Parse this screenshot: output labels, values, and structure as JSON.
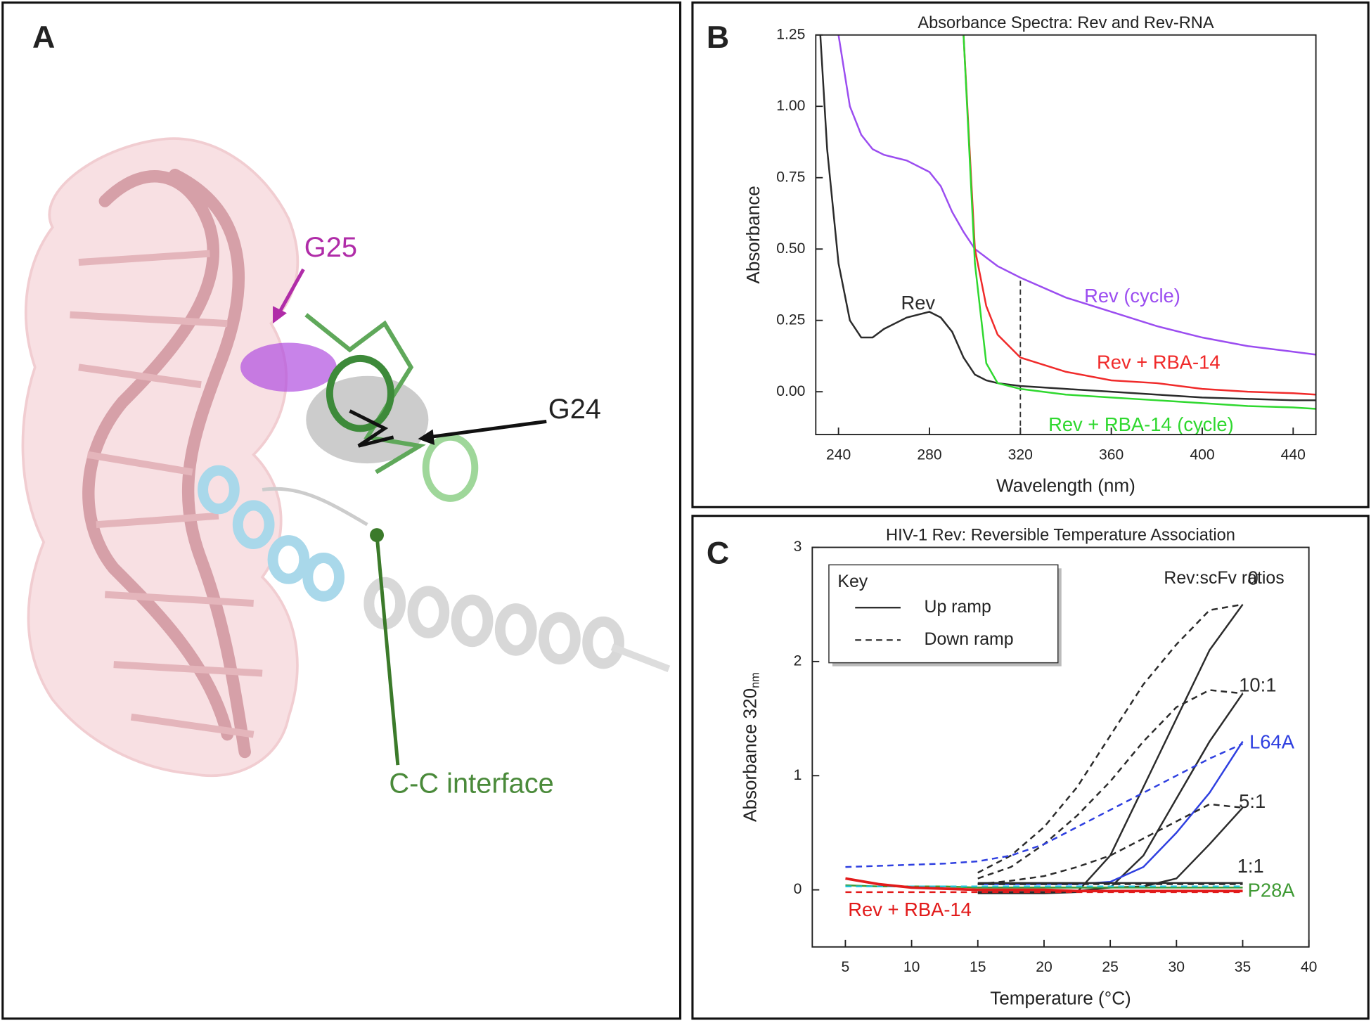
{
  "panels": [
    "A",
    "B",
    "C"
  ],
  "molecule": {
    "labels": [
      "G25",
      "G24",
      "C-C interface"
    ]
  },
  "chart_data": [
    {
      "type": "line",
      "title": "Absorbance Spectra: Rev and Rev-RNA",
      "x_label": "Wavelength (nm)",
      "y_label": "Absorbance",
      "xlim": [
        230,
        450
      ],
      "ylim": [
        -0.15,
        1.25
      ],
      "xticks": [
        240,
        280,
        320,
        360,
        400,
        440
      ],
      "yticks": [
        {
          "value": 0,
          "label": "0.00"
        },
        0.25,
        {
          "value": 0.5,
          "label": "0.50"
        },
        0.75,
        {
          "value": 1,
          "label": "1.00"
        },
        1.25
      ],
      "reference_x": 320,
      "x": [
        232,
        235,
        240,
        245,
        250,
        255,
        260,
        270,
        280,
        285,
        290,
        295,
        300,
        305,
        310,
        320,
        340,
        360,
        380,
        400,
        420,
        440,
        450
      ],
      "series": [
        {
          "name": "Rev",
          "color": "#2b2b2b",
          "values": [
            1.25,
            0.85,
            0.45,
            0.25,
            0.19,
            0.19,
            0.22,
            0.26,
            0.28,
            0.26,
            0.21,
            0.12,
            0.06,
            0.04,
            0.03,
            0.02,
            0.01,
            0.0,
            -0.01,
            -0.02,
            -0.025,
            -0.03,
            -0.03
          ]
        },
        {
          "name": "Rev (cycle)",
          "color": "#9b4df0",
          "values": [
            null,
            null,
            1.25,
            1.0,
            0.9,
            0.85,
            0.83,
            0.81,
            0.77,
            0.72,
            0.63,
            0.56,
            0.5,
            0.47,
            0.44,
            0.4,
            0.33,
            0.28,
            0.23,
            0.19,
            0.16,
            0.14,
            0.13
          ]
        },
        {
          "name": "Rev + RBA-14",
          "color": "#f02a2a",
          "values": [
            null,
            null,
            null,
            null,
            null,
            null,
            null,
            null,
            null,
            null,
            null,
            1.25,
            0.5,
            0.3,
            0.2,
            0.12,
            0.07,
            0.04,
            0.03,
            0.01,
            0.0,
            -0.005,
            -0.01
          ]
        },
        {
          "name": "Rev + RBA-14 (cycle)",
          "color": "#2fd82f",
          "values": [
            null,
            null,
            null,
            null,
            null,
            null,
            null,
            null,
            null,
            null,
            null,
            1.25,
            0.45,
            0.1,
            0.03,
            0.01,
            -0.01,
            -0.02,
            -0.03,
            -0.04,
            -0.05,
            -0.055,
            -0.06
          ]
        }
      ]
    },
    {
      "type": "line",
      "title": "HIV-1 Rev: Reversible Temperature Association",
      "x_label": "Temperature (°C)",
      "y_label": "Absorbance 320",
      "y_label_sub": "nm",
      "xlim": [
        2.5,
        40
      ],
      "ylim": [
        -0.5,
        3
      ],
      "xticks": [
        5,
        10,
        15,
        20,
        25,
        30,
        35,
        40
      ],
      "yticks": [
        0,
        1,
        2,
        3
      ],
      "legend": {
        "title": "Key",
        "entries": [
          "Up ramp",
          "Down ramp"
        ],
        "position": "upper-left"
      },
      "series_header": "Rev:scFv ratios",
      "x": [
        5,
        7.5,
        10,
        12.5,
        15,
        17.5,
        20,
        22.5,
        25,
        27.5,
        30,
        32.5,
        35
      ],
      "series": [
        {
          "name": "0",
          "color": "#2b2b2b",
          "up": [
            null,
            null,
            null,
            null,
            -0.03,
            -0.03,
            -0.03,
            -0.02,
            0.3,
            0.9,
            1.5,
            2.1,
            2.5
          ],
          "down": [
            null,
            null,
            null,
            null,
            0.15,
            0.3,
            0.55,
            0.9,
            1.35,
            1.8,
            2.15,
            2.45,
            2.5
          ]
        },
        {
          "name": "10:1",
          "color": "#2b2b2b",
          "up": [
            null,
            null,
            null,
            null,
            -0.02,
            -0.02,
            -0.02,
            -0.01,
            0.02,
            0.3,
            0.8,
            1.3,
            1.72
          ],
          "down": [
            null,
            null,
            null,
            null,
            0.1,
            0.2,
            0.4,
            0.65,
            0.95,
            1.3,
            1.6,
            1.75,
            1.72
          ]
        },
        {
          "name": "L64A",
          "color": "#2e3fe0",
          "up": [
            null,
            null,
            null,
            null,
            0.05,
            0.05,
            0.05,
            0.05,
            0.07,
            0.2,
            0.5,
            0.85,
            1.3
          ],
          "down": [
            0.2,
            0.21,
            0.22,
            0.23,
            0.25,
            0.3,
            0.4,
            0.55,
            0.7,
            0.85,
            1.0,
            1.15,
            1.28
          ]
        },
        {
          "name": "5:1",
          "color": "#2b2b2b",
          "up": [
            null,
            null,
            null,
            null,
            0.02,
            0.02,
            0.02,
            0.02,
            0.02,
            0.03,
            0.1,
            0.4,
            0.72
          ],
          "down": [
            null,
            null,
            null,
            null,
            0.05,
            0.08,
            0.12,
            0.2,
            0.3,
            0.45,
            0.6,
            0.75,
            0.72
          ]
        },
        {
          "name": "1:1",
          "color": "#2b2b2b",
          "up": [
            null,
            null,
            null,
            null,
            0.06,
            0.06,
            0.06,
            0.06,
            0.06,
            0.06,
            0.06,
            0.06,
            0.06
          ],
          "down": [
            null,
            null,
            null,
            null,
            0.05,
            0.05,
            0.05,
            0.05,
            0.05,
            0.05,
            0.05,
            0.05,
            0.05
          ]
        },
        {
          "name": "P28A",
          "color": "#3f9a34",
          "down_color": "#22c4d8",
          "up": [
            0.04,
            0.03,
            0.03,
            0.03,
            0.02,
            0.02,
            0.02,
            0.02,
            0.02,
            0.02,
            0.02,
            0.02,
            0.02
          ],
          "down": [
            0.03,
            0.03,
            0.03,
            0.03,
            0.03,
            0.03,
            0.03,
            0.03,
            0.03,
            0.03,
            0.03,
            0.03,
            0.03
          ]
        },
        {
          "name": "Rev + RBA-14",
          "color": "#e21b1b",
          "up": [
            0.1,
            0.05,
            0.02,
            0.01,
            0.0,
            0.0,
            0.0,
            -0.01,
            -0.01,
            -0.01,
            -0.01,
            -0.01,
            -0.01
          ],
          "down": [
            -0.02,
            -0.02,
            -0.02,
            -0.02,
            -0.02,
            -0.02,
            -0.02,
            -0.02,
            -0.02,
            -0.02,
            -0.02,
            -0.02,
            -0.02
          ]
        }
      ]
    }
  ]
}
